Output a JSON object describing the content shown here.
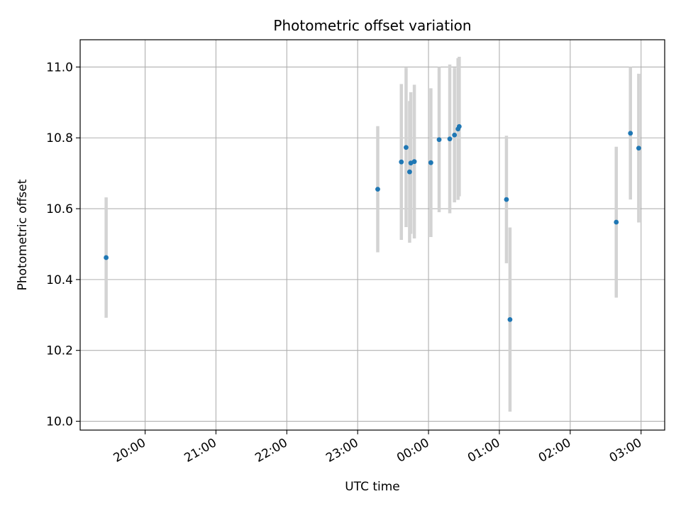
{
  "chart_data": {
    "type": "scatter",
    "title": "Photometric offset variation",
    "xlabel": "UTC time",
    "ylabel": "Photometric offset",
    "x_ticks": [
      "20:00",
      "21:00",
      "22:00",
      "23:00",
      "00:00",
      "01:00",
      "02:00",
      "03:00"
    ],
    "y_ticks": [
      "10.0",
      "10.2",
      "10.4",
      "10.6",
      "10.8",
      "11.0"
    ],
    "xlim": [
      "19:05",
      "03:20"
    ],
    "ylim": [
      9.975,
      11.077
    ],
    "grid": true,
    "point_color": "#1f77b4",
    "errorbar_color": "#d3d3d3",
    "points": [
      {
        "x": "19:27",
        "y": 10.462,
        "err": 0.17
      },
      {
        "x": "23:17",
        "y": 10.655,
        "err": 0.178
      },
      {
        "x": "23:37",
        "y": 10.732,
        "err": 0.22
      },
      {
        "x": "23:41",
        "y": 10.773,
        "err": 0.225
      },
      {
        "x": "23:44",
        "y": 10.704,
        "err": 0.2
      },
      {
        "x": "23:45",
        "y": 10.729,
        "err": 0.2
      },
      {
        "x": "23:48",
        "y": 10.733,
        "err": 0.217
      },
      {
        "x": "00:02",
        "y": 10.73,
        "err": 0.21
      },
      {
        "x": "00:09",
        "y": 10.795,
        "err": 0.205
      },
      {
        "x": "00:18",
        "y": 10.797,
        "err": 0.21
      },
      {
        "x": "00:22",
        "y": 10.808,
        "err": 0.19
      },
      {
        "x": "00:25",
        "y": 10.825,
        "err": 0.2
      },
      {
        "x": "00:26",
        "y": 10.832,
        "err": 0.197
      },
      {
        "x": "01:06",
        "y": 10.626,
        "err": 0.18
      },
      {
        "x": "01:09",
        "y": 10.287,
        "err": 0.26
      },
      {
        "x": "02:39",
        "y": 10.562,
        "err": 0.213
      },
      {
        "x": "02:51",
        "y": 10.813,
        "err": 0.187
      },
      {
        "x": "02:58",
        "y": 10.771,
        "err": 0.21
      }
    ]
  }
}
